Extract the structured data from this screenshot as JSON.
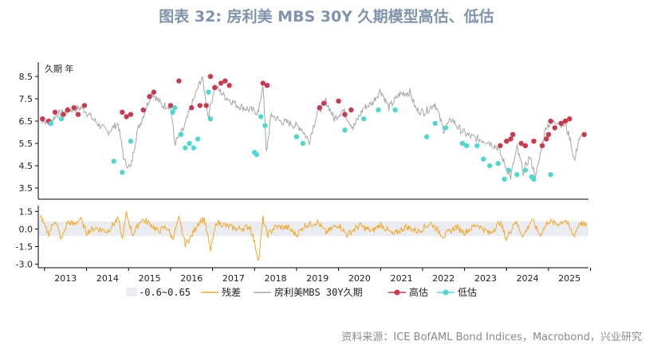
{
  "title": "图表 32: 房利美 MBS 30Y 久期模型高估、低估",
  "source": "资料来源：ICE BofAML Bond Indices，Macrobond，兴业研究",
  "chart_data": {
    "type": "line",
    "panels": [
      {
        "id": "top",
        "ylabel": "久期 年",
        "yticks": [
          3.5,
          4.5,
          5.5,
          6.5,
          7.5,
          8.5
        ],
        "ylim": [
          3.0,
          9.0
        ]
      },
      {
        "id": "bottom",
        "yticks": [
          1.5,
          0.0,
          -1.5,
          -3.0
        ],
        "ylim": [
          -3.3,
          2.0
        ],
        "band": [
          -0.6,
          0.65
        ]
      }
    ],
    "x_range": [
      2012.85,
      2025.95
    ],
    "years": [
      "2013",
      "2014",
      "2015",
      "2016",
      "2017",
      "2018",
      "2019",
      "2020",
      "2021",
      "2022",
      "2023",
      "2024",
      "2025"
    ],
    "legend": [
      "-0.6~0.65",
      "残差",
      "房利美MBS 30Y久期",
      "高估",
      "低估"
    ],
    "colors": {
      "duration": "#a6a6a6",
      "residual": "#f5a623",
      "high": "#c93a4f",
      "low": "#4fd8d0",
      "band": "#e9edf2"
    },
    "duration_anchors": [
      [
        2012.9,
        6.6
      ],
      [
        2013.1,
        6.4
      ],
      [
        2013.3,
        6.8
      ],
      [
        2013.6,
        7.0
      ],
      [
        2013.9,
        7.1
      ],
      [
        2014.2,
        6.5
      ],
      [
        2014.5,
        6.0
      ],
      [
        2014.75,
        6.4
      ],
      [
        2014.9,
        4.7
      ],
      [
        2015.05,
        4.4
      ],
      [
        2015.2,
        6.0
      ],
      [
        2015.4,
        7.0
      ],
      [
        2015.55,
        7.8
      ],
      [
        2015.8,
        7.2
      ],
      [
        2016.0,
        7.2
      ],
      [
        2016.1,
        5.5
      ],
      [
        2016.3,
        6.1
      ],
      [
        2016.5,
        7.2
      ],
      [
        2016.75,
        8.5
      ],
      [
        2016.9,
        6.7
      ],
      [
        2017.05,
        8.1
      ],
      [
        2017.3,
        7.6
      ],
      [
        2017.6,
        7.2
      ],
      [
        2017.9,
        7.0
      ],
      [
        2018.1,
        6.9
      ],
      [
        2018.2,
        8.2
      ],
      [
        2018.28,
        5.1
      ],
      [
        2018.4,
        6.8
      ],
      [
        2018.6,
        6.5
      ],
      [
        2018.85,
        6.4
      ],
      [
        2019.1,
        6.2
      ],
      [
        2019.3,
        5.6
      ],
      [
        2019.5,
        6.9
      ],
      [
        2019.7,
        7.4
      ],
      [
        2019.9,
        6.6
      ],
      [
        2020.1,
        7.0
      ],
      [
        2020.35,
        6.2
      ],
      [
        2020.6,
        7.1
      ],
      [
        2020.8,
        7.3
      ],
      [
        2021.0,
        7.9
      ],
      [
        2021.2,
        7.1
      ],
      [
        2021.45,
        7.7
      ],
      [
        2021.7,
        7.8
      ],
      [
        2021.85,
        7.0
      ],
      [
        2022.05,
        6.9
      ],
      [
        2022.3,
        7.3
      ],
      [
        2022.5,
        6.1
      ],
      [
        2022.7,
        6.6
      ],
      [
        2022.85,
        6.2
      ],
      [
        2023.05,
        5.9
      ],
      [
        2023.3,
        5.7
      ],
      [
        2023.55,
        5.6
      ],
      [
        2023.8,
        5.3
      ],
      [
        2023.95,
        4.6
      ],
      [
        2024.1,
        4.0
      ],
      [
        2024.25,
        5.3
      ],
      [
        2024.4,
        4.2
      ],
      [
        2024.55,
        4.9
      ],
      [
        2024.7,
        4.0
      ],
      [
        2024.85,
        5.5
      ],
      [
        2024.95,
        6.3
      ],
      [
        2025.2,
        6.5
      ],
      [
        2025.4,
        6.3
      ],
      [
        2025.5,
        5.8
      ],
      [
        2025.62,
        4.7
      ],
      [
        2025.72,
        5.7
      ],
      [
        2025.85,
        5.8
      ]
    ],
    "high_points": [
      [
        2012.95,
        6.6
      ],
      [
        2013.1,
        6.5
      ],
      [
        2013.25,
        6.9
      ],
      [
        2013.45,
        6.8
      ],
      [
        2013.55,
        7.0
      ],
      [
        2013.7,
        7.1
      ],
      [
        2013.8,
        6.8
      ],
      [
        2013.95,
        7.2
      ],
      [
        2014.85,
        6.9
      ],
      [
        2014.95,
        6.7
      ],
      [
        2015.05,
        6.8
      ],
      [
        2015.35,
        7.0
      ],
      [
        2015.5,
        7.6
      ],
      [
        2015.6,
        7.8
      ],
      [
        2016.0,
        7.2
      ],
      [
        2016.2,
        8.3
      ],
      [
        2016.5,
        7.1
      ],
      [
        2016.7,
        7.2
      ],
      [
        2016.85,
        7.2
      ],
      [
        2016.95,
        8.5
      ],
      [
        2017.05,
        8.0
      ],
      [
        2017.2,
        8.2
      ],
      [
        2017.3,
        8.3
      ],
      [
        2017.4,
        8.1
      ],
      [
        2018.2,
        8.2
      ],
      [
        2018.3,
        8.1
      ],
      [
        2019.55,
        7.1
      ],
      [
        2019.65,
        7.3
      ],
      [
        2020.0,
        7.4
      ],
      [
        2020.15,
        6.8
      ],
      [
        2020.3,
        7.0
      ],
      [
        2023.85,
        5.4
      ],
      [
        2024.0,
        5.6
      ],
      [
        2024.1,
        5.7
      ],
      [
        2024.15,
        5.9
      ],
      [
        2024.35,
        5.5
      ],
      [
        2024.45,
        5.4
      ],
      [
        2024.65,
        5.6
      ],
      [
        2024.85,
        5.4
      ],
      [
        2024.95,
        5.7
      ],
      [
        2025.0,
        5.9
      ],
      [
        2025.05,
        6.5
      ],
      [
        2025.15,
        6.2
      ],
      [
        2025.3,
        6.4
      ],
      [
        2025.4,
        6.5
      ],
      [
        2025.5,
        6.6
      ],
      [
        2025.85,
        5.9
      ]
    ],
    "low_points": [
      [
        2013.15,
        6.4
      ],
      [
        2013.4,
        6.6
      ],
      [
        2014.65,
        4.7
      ],
      [
        2014.85,
        4.2
      ],
      [
        2015.05,
        5.6
      ],
      [
        2016.05,
        6.9
      ],
      [
        2016.1,
        7.1
      ],
      [
        2016.25,
        5.9
      ],
      [
        2016.35,
        5.3
      ],
      [
        2016.45,
        5.5
      ],
      [
        2016.55,
        5.3
      ],
      [
        2016.65,
        5.7
      ],
      [
        2016.9,
        7.8
      ],
      [
        2016.95,
        6.6
      ],
      [
        2018.0,
        5.1
      ],
      [
        2018.05,
        5.0
      ],
      [
        2018.15,
        6.7
      ],
      [
        2018.25,
        6.3
      ],
      [
        2019.0,
        5.8
      ],
      [
        2019.15,
        5.5
      ],
      [
        2020.15,
        6.1
      ],
      [
        2020.6,
        6.6
      ],
      [
        2020.95,
        7.0
      ],
      [
        2021.35,
        7.0
      ],
      [
        2022.1,
        5.8
      ],
      [
        2022.3,
        6.4
      ],
      [
        2022.55,
        6.2
      ],
      [
        2022.95,
        5.5
      ],
      [
        2023.05,
        5.4
      ],
      [
        2023.3,
        5.4
      ],
      [
        2023.45,
        4.8
      ],
      [
        2023.6,
        4.5
      ],
      [
        2023.8,
        4.6
      ],
      [
        2023.95,
        3.9
      ],
      [
        2024.05,
        4.3
      ],
      [
        2024.25,
        4.1
      ],
      [
        2024.45,
        4.3
      ],
      [
        2024.6,
        4.0
      ],
      [
        2024.65,
        3.9
      ],
      [
        2025.05,
        4.1
      ]
    ],
    "residual_anchors": [
      [
        2012.9,
        1.2
      ],
      [
        2013.0,
        0.2
      ],
      [
        2013.1,
        -0.4
      ],
      [
        2013.25,
        0.8
      ],
      [
        2013.4,
        -0.9
      ],
      [
        2013.55,
        0.6
      ],
      [
        2013.7,
        0.4
      ],
      [
        2013.85,
        0.9
      ],
      [
        2014.0,
        -0.3
      ],
      [
        2014.2,
        0.1
      ],
      [
        2014.5,
        -0.2
      ],
      [
        2014.75,
        0.9
      ],
      [
        2014.85,
        -0.9
      ],
      [
        2014.95,
        1.3
      ],
      [
        2015.1,
        -0.5
      ],
      [
        2015.3,
        0.8
      ],
      [
        2015.5,
        0.5
      ],
      [
        2015.7,
        -0.2
      ],
      [
        2015.9,
        0.2
      ],
      [
        2016.05,
        -0.8
      ],
      [
        2016.2,
        0.9
      ],
      [
        2016.35,
        -1.3
      ],
      [
        2016.5,
        -0.6
      ],
      [
        2016.65,
        0.5
      ],
      [
        2016.8,
        0.9
      ],
      [
        2016.95,
        -1.8
      ],
      [
        2017.1,
        0.6
      ],
      [
        2017.3,
        0.3
      ],
      [
        2017.6,
        0.0
      ],
      [
        2017.9,
        0.2
      ],
      [
        2018.0,
        -1.2
      ],
      [
        2018.1,
        -2.7
      ],
      [
        2018.2,
        0.9
      ],
      [
        2018.3,
        -0.5
      ],
      [
        2018.5,
        0.2
      ],
      [
        2018.8,
        0.1
      ],
      [
        2019.0,
        -0.5
      ],
      [
        2019.2,
        0.3
      ],
      [
        2019.5,
        0.6
      ],
      [
        2019.7,
        -0.3
      ],
      [
        2020.0,
        0.4
      ],
      [
        2020.2,
        -0.5
      ],
      [
        2020.5,
        0.3
      ],
      [
        2020.8,
        -0.2
      ],
      [
        2021.0,
        0.4
      ],
      [
        2021.3,
        -0.5
      ],
      [
        2021.6,
        0.2
      ],
      [
        2021.9,
        -0.2
      ],
      [
        2022.2,
        0.5
      ],
      [
        2022.5,
        -0.6
      ],
      [
        2022.8,
        0.2
      ],
      [
        2023.0,
        -0.3
      ],
      [
        2023.3,
        0.4
      ],
      [
        2023.6,
        -0.4
      ],
      [
        2023.85,
        0.6
      ],
      [
        2024.0,
        -0.9
      ],
      [
        2024.2,
        0.7
      ],
      [
        2024.4,
        -0.6
      ],
      [
        2024.6,
        0.8
      ],
      [
        2024.8,
        -0.5
      ],
      [
        2025.0,
        0.7
      ],
      [
        2025.2,
        0.4
      ],
      [
        2025.4,
        0.8
      ],
      [
        2025.6,
        -0.6
      ],
      [
        2025.75,
        0.6
      ],
      [
        2025.9,
        0.2
      ]
    ]
  }
}
